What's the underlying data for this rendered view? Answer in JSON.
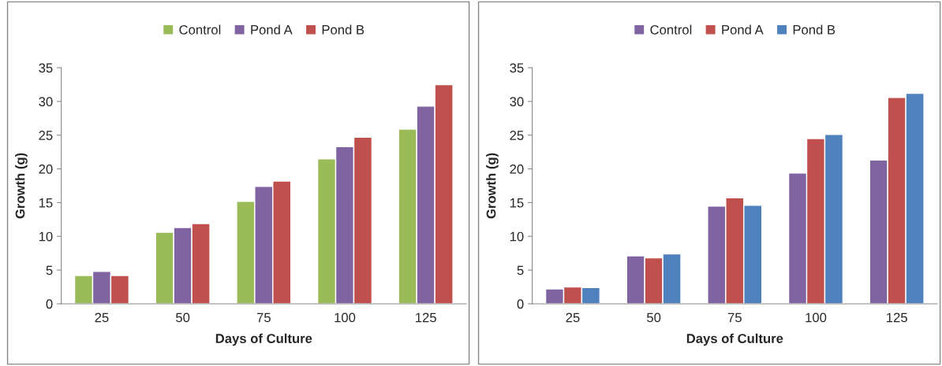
{
  "chart_data": [
    {
      "type": "bar",
      "xlabel": "Days of Culture",
      "ylabel": "Growth (g)",
      "categories": [
        "25",
        "50",
        "75",
        "100",
        "125"
      ],
      "ylim": [
        0,
        35
      ],
      "yticks": [
        0,
        5,
        10,
        15,
        20,
        25,
        30,
        35
      ],
      "grid": false,
      "legend": "top",
      "series": [
        {
          "name": "Control",
          "color": "#9bbb59",
          "values": [
            4.2,
            10.6,
            15.2,
            21.5,
            25.9
          ]
        },
        {
          "name": "Pond A",
          "color": "#8064a2",
          "values": [
            4.8,
            11.3,
            17.4,
            23.3,
            29.3
          ]
        },
        {
          "name": "Pond B",
          "color": "#c0504d",
          "values": [
            4.2,
            11.9,
            18.2,
            24.7,
            32.5
          ]
        }
      ]
    },
    {
      "type": "bar",
      "xlabel": "Days of Culture",
      "ylabel": "Growth (g)",
      "categories": [
        "25",
        "50",
        "75",
        "100",
        "125"
      ],
      "ylim": [
        0,
        35
      ],
      "yticks": [
        0,
        5,
        10,
        15,
        20,
        25,
        30,
        35
      ],
      "grid": false,
      "legend": "top",
      "series": [
        {
          "name": "Control",
          "color": "#8064a2",
          "values": [
            2.2,
            7.1,
            14.5,
            19.4,
            21.3
          ]
        },
        {
          "name": "Pond A",
          "color": "#c0504d",
          "values": [
            2.5,
            6.8,
            15.7,
            24.5,
            30.6
          ]
        },
        {
          "name": "Pond B",
          "color": "#4f81bd",
          "values": [
            2.4,
            7.4,
            14.6,
            25.1,
            31.2
          ]
        }
      ]
    }
  ]
}
